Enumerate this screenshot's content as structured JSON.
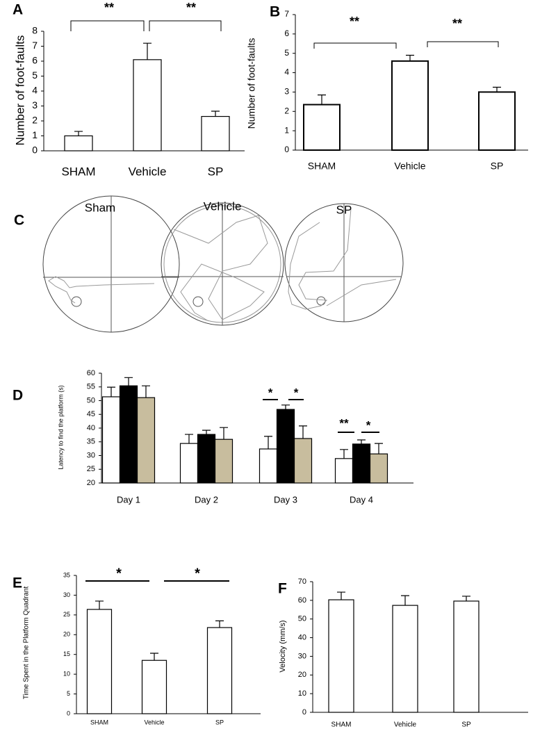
{
  "chart_data": [
    {
      "type": "bar",
      "label": "A",
      "ylabel": "Number of foot-faults",
      "categories": [
        "SHAM",
        "Vehicle",
        "SP"
      ],
      "values": [
        1.0,
        6.1,
        2.3
      ],
      "errors": [
        0.3,
        1.1,
        0.35
      ],
      "color": "#ffffff",
      "ylim": [
        0,
        8
      ],
      "yticks": [
        0,
        1,
        2,
        3,
        4,
        5,
        6,
        7,
        8
      ],
      "grid": false,
      "annotations": [
        "**",
        "**"
      ]
    },
    {
      "type": "bar",
      "label": "B",
      "ylabel": "Number of foot-faults",
      "categories": [
        "SHAM",
        "Vehicle",
        "SP"
      ],
      "values": [
        2.35,
        4.6,
        3.0
      ],
      "errors": [
        0.5,
        0.3,
        0.25
      ],
      "color": "#ffffff",
      "ylim": [
        0,
        7
      ],
      "yticks": [
        0,
        1,
        2,
        3,
        4,
        5,
        6,
        7
      ],
      "grid": false,
      "annotations": [
        "**",
        "**"
      ]
    },
    {
      "type": "grouped-bar",
      "label": "D",
      "ylabel": "Latency to find the platform (s)",
      "categories": [
        "Day 1",
        "Day 2",
        "Day 3",
        "Day 4"
      ],
      "series": [
        {
          "color": "#ffffff",
          "values": [
            51.4,
            34.4,
            32.4,
            28.9
          ],
          "errors": [
            3.5,
            3.3,
            4.6,
            3.3
          ]
        },
        {
          "color": "#000000",
          "values": [
            55.4,
            37.7,
            46.8,
            34.2
          ],
          "errors": [
            3.0,
            1.5,
            1.6,
            1.5
          ]
        },
        {
          "color": "#c8bd9e",
          "values": [
            51.1,
            35.9,
            36.2,
            30.6
          ],
          "errors": [
            4.3,
            4.3,
            4.6,
            3.8
          ]
        }
      ],
      "ylim": [
        20,
        60
      ],
      "yticks": [
        20,
        25,
        30,
        35,
        40,
        45,
        50,
        55,
        60
      ],
      "grid": false,
      "annotations": [
        "*",
        "*",
        "**",
        "*"
      ]
    },
    {
      "type": "bar",
      "label": "E",
      "ylabel": "Time Spent in the Platform Quadrant",
      "categories": [
        "SHAM",
        "Vehicle",
        "SP"
      ],
      "values": [
        26.4,
        13.5,
        21.8
      ],
      "errors": [
        2.1,
        1.8,
        1.7
      ],
      "color": "#ffffff",
      "ylim": [
        0,
        35
      ],
      "yticks": [
        0,
        5,
        10,
        15,
        20,
        25,
        30,
        35
      ],
      "grid": false,
      "annotations": [
        "*",
        "*"
      ]
    },
    {
      "type": "bar",
      "label": "F",
      "ylabel": "Velocity (mm/s)",
      "categories": [
        "SHAM",
        "Vehicle",
        "SP"
      ],
      "values": [
        60.3,
        57.3,
        59.6
      ],
      "errors": [
        4.1,
        5.2,
        2.6
      ],
      "color": "#ffffff",
      "ylim": [
        0,
        70
      ],
      "yticks": [
        0,
        10,
        20,
        30,
        40,
        50,
        60,
        70
      ],
      "grid": false,
      "annotations": []
    }
  ],
  "panel_c": {
    "label": "C",
    "titles": [
      "Sham",
      "Vehicle",
      "SP"
    ]
  }
}
